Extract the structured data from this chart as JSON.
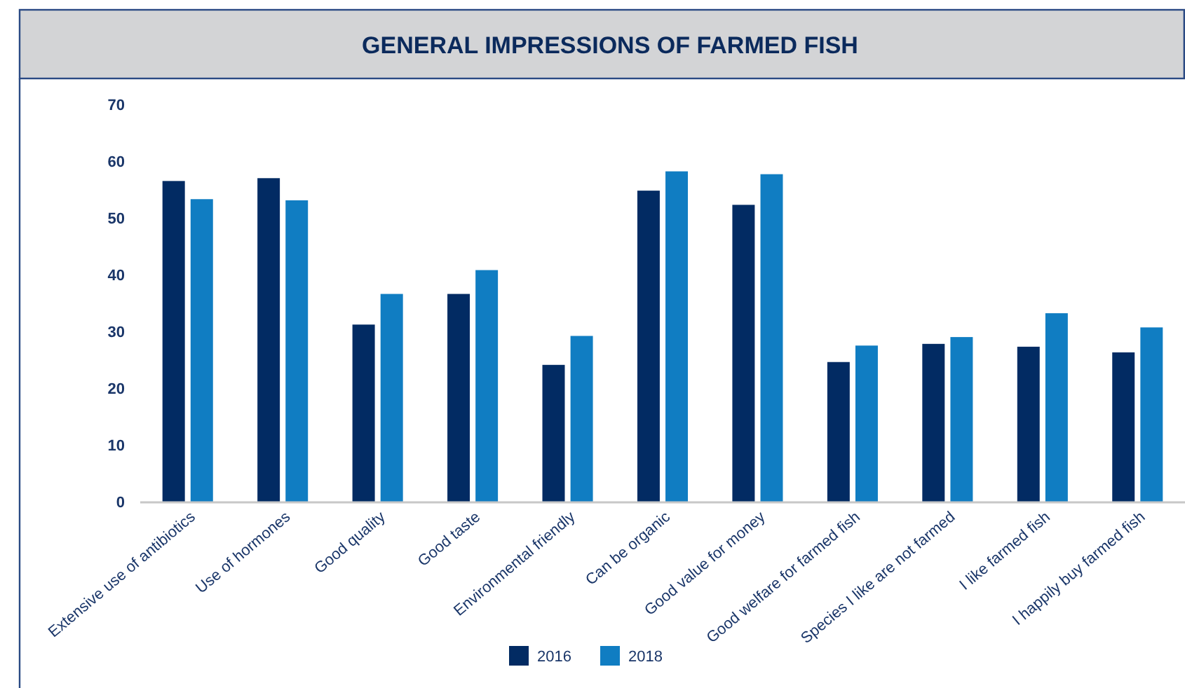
{
  "chart_data": {
    "type": "bar",
    "title": "GENERAL IMPRESSIONS OF FARMED FISH",
    "categories": [
      "Extensive use of antibiotics",
      "Use of hormones",
      "Good quality",
      "Good taste",
      "Environmental friendly",
      "Can be organic",
      "Good value for money",
      "Good welfare for farmed fish",
      "Species I like are not farmed",
      "I like farmed fish",
      "I happily buy farmed fish"
    ],
    "series": [
      {
        "name": "2016",
        "color": "#022b63",
        "values": [
          56.5,
          57,
          31.2,
          36.6,
          24.1,
          54.8,
          52.3,
          24.6,
          27.8,
          27.3,
          26.3
        ]
      },
      {
        "name": "2018",
        "color": "#107dc2",
        "values": [
          53.3,
          53.1,
          36.6,
          40.8,
          29.2,
          58.2,
          57.7,
          27.5,
          29,
          33.2,
          30.7
        ]
      }
    ],
    "ylim": [
      0,
      70
    ],
    "yticks": [
      0,
      10,
      20,
      30,
      40,
      50,
      60,
      70
    ],
    "grid": false,
    "legend": "bottom"
  }
}
